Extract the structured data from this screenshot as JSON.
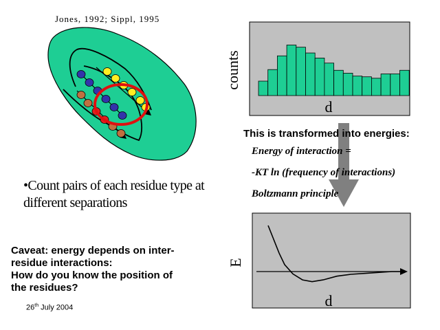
{
  "citation": "Jones, 1992; Sippl, 1995",
  "bullet": "•Count pairs of each residue type at different separations",
  "caveat": {
    "line1": "Caveat:  energy depends on inter-",
    "line2": "residue interactions:",
    "line3": "How do you know  the position of",
    "line4": "the residues?"
  },
  "date": {
    "day": "26",
    "suffix": "th",
    "rest": " July 2004"
  },
  "transform": {
    "title": "This is transformed into energies:",
    "formula1": "Energy of interaction =",
    "formula2": "-KT ln (frequency of interactions)",
    "formula3": "Boltzmann principle"
  },
  "colors": {
    "blob": "#1ece94",
    "bar": "#1ece94",
    "panel": "#c0c0c0",
    "arrow": "#808080",
    "circle": "#e01010",
    "blue_residue": "#3333aa",
    "yellow_residue": "#ffee22",
    "brown_residue": "#c07040",
    "red_residue": "#e02020"
  },
  "chart_data": [
    {
      "type": "bar",
      "xlabel": "d",
      "ylabel": "counts",
      "values": [
        20,
        36,
        55,
        70,
        67,
        59,
        52,
        45,
        35,
        31,
        27,
        26,
        24,
        30,
        30,
        35
      ],
      "ylim": [
        0,
        80
      ],
      "grid": false
    },
    {
      "type": "line",
      "xlabel": "d",
      "ylabel": "E",
      "x": [
        0.0,
        0.04,
        0.08,
        0.12,
        0.18,
        0.25,
        0.32,
        0.4,
        0.5,
        0.6,
        0.7,
        0.8,
        0.9,
        0.97
      ],
      "y": [
        1.0,
        0.7,
        0.4,
        0.15,
        -0.05,
        -0.18,
        -0.22,
        -0.18,
        -0.1,
        -0.06,
        -0.04,
        -0.02,
        0.0,
        0.0
      ],
      "ylim": [
        -0.4,
        1.1
      ],
      "grid": false
    }
  ]
}
